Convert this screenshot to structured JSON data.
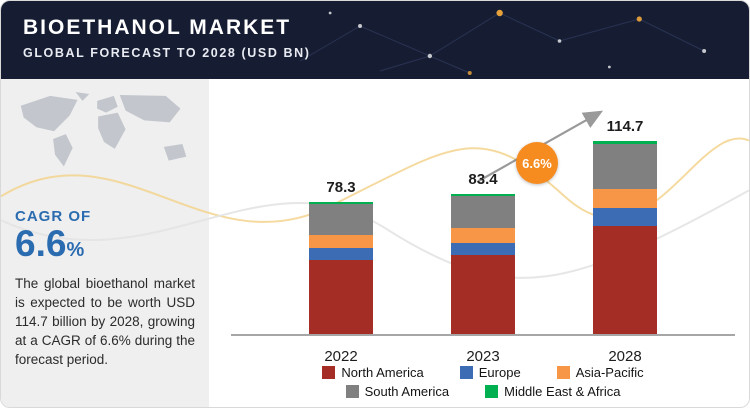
{
  "header": {
    "title": "BIOETHANOL MARKET",
    "subtitle": "GLOBAL FORECAST TO 2028 (USD BN)"
  },
  "sidebar": {
    "cagr_label": "CAGR OF",
    "cagr_value": "6.6",
    "cagr_pct": "%",
    "description": "The global bioethanol market is expected to be worth USD 114.7 billion by 2028, growing at a CAGR of 6.6% during the forecast period."
  },
  "chart_data": {
    "type": "bar",
    "stacked": true,
    "title": "Bioethanol Market, Global Forecast to 2028 (USD BN)",
    "categories": [
      "2022",
      "2023",
      "2028"
    ],
    "totals": [
      78.3,
      83.4,
      114.7
    ],
    "series": [
      {
        "name": "North America",
        "color": "#a42e25",
        "values": [
          44.0,
          46.8,
          64.4
        ]
      },
      {
        "name": "Europe",
        "color": "#3b6cb4",
        "values": [
          7.0,
          7.5,
          10.3
        ]
      },
      {
        "name": "Asia-Pacific",
        "color": "#f79646",
        "values": [
          8.0,
          8.5,
          11.7
        ]
      },
      {
        "name": "South America",
        "color": "#808080",
        "values": [
          18.0,
          19.2,
          26.4
        ]
      },
      {
        "name": "Middle East & Africa",
        "color": "#00b050",
        "values": [
          1.3,
          1.4,
          1.9
        ]
      }
    ],
    "growth_badge": "6.6%",
    "ylim": [
      0,
      120
    ],
    "grid": false,
    "legend_position": "bottom"
  }
}
